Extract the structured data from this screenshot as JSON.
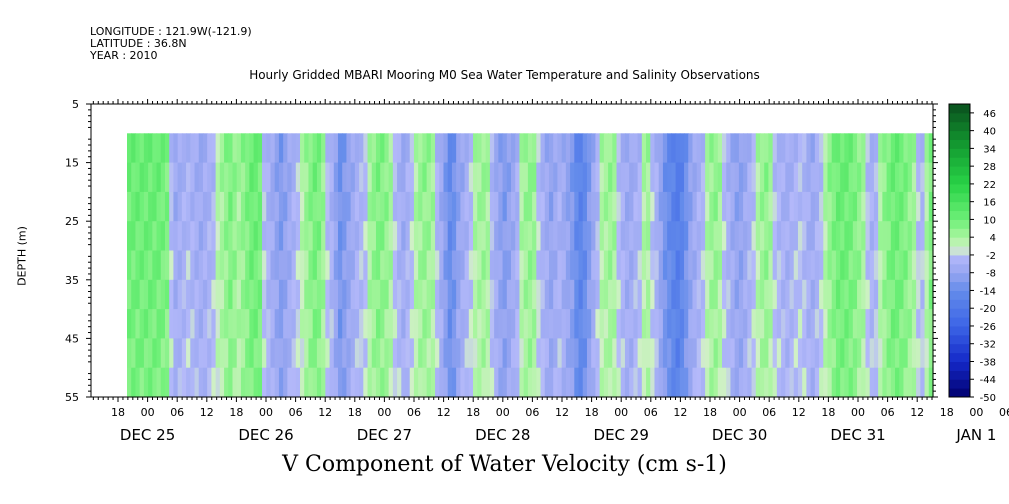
{
  "header": {
    "longitude": "LONGITUDE : 121.9W(-121.9)",
    "latitude": "LATITUDE : 36.8N",
    "year": "YEAR : 2010"
  },
  "chart_data": {
    "type": "heatmap",
    "title": "Hourly Gridded MBARI Mooring M0 Sea Water Temperature and Salinity Observations",
    "xlabel": "V Component of Water Velocity (cm s-1)",
    "ylabel": "DEPTH (m)",
    "ylim": [
      5,
      55
    ],
    "y_reversed": true,
    "y_ticks": [
      5,
      15,
      25,
      35,
      45,
      55
    ],
    "data_depth_range": [
      10,
      55
    ],
    "x_hour_labels": [
      "18",
      "00",
      "06",
      "12",
      "18",
      "00",
      "06",
      "12",
      "18",
      "00",
      "06",
      "12",
      "18",
      "00",
      "06",
      "12",
      "18",
      "00",
      "06",
      "12",
      "18",
      "00",
      "06",
      "12",
      "18",
      "00",
      "06",
      "12",
      "18",
      "00",
      "06",
      "12"
    ],
    "x_date_labels": [
      "DEC 25",
      "DEC 26",
      "DEC 27",
      "DEC 28",
      "DEC 29",
      "DEC 30",
      "DEC 31",
      "JAN  1"
    ],
    "colorbar": {
      "labels": [
        "46",
        "40",
        "34",
        "28",
        "22",
        "16",
        "10",
        "4",
        "-2",
        "-8",
        "-14",
        "-20",
        "-26",
        "-32",
        "-38",
        "-44",
        "-50"
      ],
      "range": [
        -50,
        49
      ]
    },
    "time_series_note": "",
    "v_column_mean_by_hour": [
      10,
      10,
      10,
      10,
      10,
      10,
      10,
      10,
      9,
      8,
      -2,
      -6,
      -5,
      -4,
      -3,
      -4,
      -5,
      -6,
      -5,
      -4,
      -3,
      2,
      4,
      6,
      8,
      6,
      4,
      6,
      8,
      10,
      10,
      9,
      -2,
      -4,
      -6,
      -8,
      -10,
      -8,
      -6,
      -4,
      -2,
      2,
      5,
      7,
      9,
      8,
      5,
      -2,
      -4,
      -8,
      -12,
      -10,
      -8,
      -6,
      -4,
      -3,
      -2,
      4,
      6,
      8,
      7,
      6,
      4,
      -2,
      -4,
      -6,
      -4,
      -2,
      3,
      5,
      6,
      5,
      4,
      -3,
      -6,
      -10,
      -14,
      -12,
      -8,
      -6,
      -4,
      -2,
      3,
      4,
      5,
      4,
      -3,
      -6,
      -8,
      -10,
      -8,
      -6,
      -4,
      3,
      5,
      6,
      5,
      -2,
      -4,
      -6,
      -8,
      -6,
      -4,
      -6,
      -8,
      -10,
      -14,
      -16,
      -14,
      -10,
      -6,
      -3,
      3,
      4,
      5,
      4,
      -2,
      -4,
      -6,
      -6,
      -4,
      -3,
      3,
      4,
      -2,
      -4,
      -8,
      -12,
      -14,
      -16,
      -18,
      -16,
      -12,
      -8,
      -6,
      -4,
      -3,
      3,
      5,
      6,
      4,
      -2,
      -4,
      -6,
      -8,
      -8,
      -6,
      -4,
      -2,
      3,
      5,
      6,
      4,
      -2,
      -3,
      -4,
      -5,
      -4,
      -3,
      -2,
      -3,
      -5,
      -6,
      -4,
      -2,
      3,
      6,
      8,
      10,
      10,
      10,
      9,
      8,
      6,
      4,
      -2,
      -4,
      -3,
      3,
      6,
      8,
      10,
      10,
      9,
      8,
      6,
      4,
      -2,
      -3,
      3,
      8
    ]
  }
}
